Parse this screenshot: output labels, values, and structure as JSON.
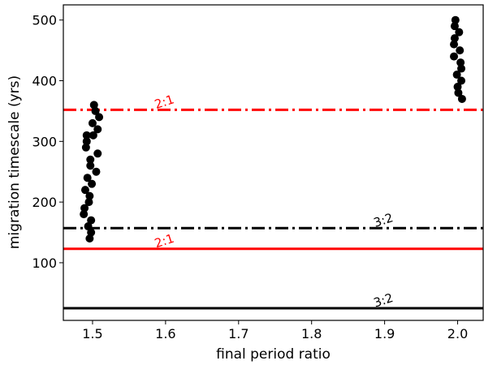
{
  "chart_data": {
    "type": "scatter",
    "xlabel": "final period ratio",
    "ylabel": "migration timescale (yrs)",
    "xlim": [
      1.46,
      2.035
    ],
    "ylim": [
      5,
      525
    ],
    "xticks": [
      1.5,
      1.6,
      1.7,
      1.8,
      1.9,
      2.0
    ],
    "xtick_labels": [
      "1.5",
      "1.6",
      "1.7",
      "1.8",
      "1.9",
      "2.0"
    ],
    "yticks": [
      100,
      200,
      300,
      400,
      500
    ],
    "ytick_labels": [
      "100",
      "200",
      "300",
      "400",
      "500"
    ],
    "grid": false,
    "legend": "none",
    "point_color": "#000000",
    "points": [
      {
        "x": 1.488,
        "y": 180
      },
      {
        "x": 1.489,
        "y": 190
      },
      {
        "x": 1.49,
        "y": 220
      },
      {
        "x": 1.493,
        "y": 240
      },
      {
        "x": 1.491,
        "y": 290
      },
      {
        "x": 1.492,
        "y": 300
      },
      {
        "x": 1.492,
        "y": 310
      },
      {
        "x": 1.494,
        "y": 160
      },
      {
        "x": 1.495,
        "y": 200
      },
      {
        "x": 1.496,
        "y": 210
      },
      {
        "x": 1.496,
        "y": 140
      },
      {
        "x": 1.497,
        "y": 260
      },
      {
        "x": 1.497,
        "y": 270
      },
      {
        "x": 1.498,
        "y": 150
      },
      {
        "x": 1.498,
        "y": 170
      },
      {
        "x": 1.499,
        "y": 230
      },
      {
        "x": 1.5,
        "y": 330
      },
      {
        "x": 1.502,
        "y": 360
      },
      {
        "x": 1.504,
        "y": 350
      },
      {
        "x": 1.505,
        "y": 250
      },
      {
        "x": 1.507,
        "y": 280
      },
      {
        "x": 1.507,
        "y": 320
      },
      {
        "x": 1.509,
        "y": 340
      },
      {
        "x": 1.501,
        "y": 310
      },
      {
        "x": 1.995,
        "y": 440
      },
      {
        "x": 1.995,
        "y": 460
      },
      {
        "x": 1.996,
        "y": 490
      },
      {
        "x": 1.996,
        "y": 470
      },
      {
        "x": 1.997,
        "y": 500
      },
      {
        "x": 1.999,
        "y": 410
      },
      {
        "x": 2.0,
        "y": 390
      },
      {
        "x": 2.001,
        "y": 380
      },
      {
        "x": 2.002,
        "y": 480
      },
      {
        "x": 2.003,
        "y": 450
      },
      {
        "x": 2.004,
        "y": 430
      },
      {
        "x": 2.005,
        "y": 420
      },
      {
        "x": 2.005,
        "y": 400
      },
      {
        "x": 2.006,
        "y": 370
      }
    ],
    "reference_lines": [
      {
        "y": 352,
        "color": "#ff0000",
        "style": "dashdot",
        "label": "2:1",
        "label_x": 1.6
      },
      {
        "y": 157,
        "color": "#000000",
        "style": "dashdot",
        "label": "3:2",
        "label_x": 1.9
      },
      {
        "y": 123,
        "color": "#ff0000",
        "style": "solid",
        "label": "2:1",
        "label_x": 1.6
      },
      {
        "y": 25,
        "color": "#000000",
        "style": "solid",
        "label": "3:2",
        "label_x": 1.9
      }
    ]
  }
}
